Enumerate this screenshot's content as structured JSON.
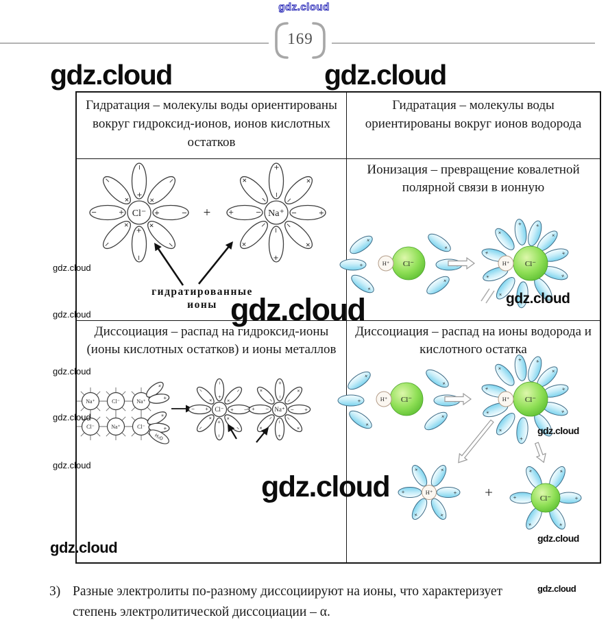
{
  "watermark": "gdz.cloud",
  "page": {
    "number": "169"
  },
  "table": {
    "row1": {
      "left": "Гидратация – молекулы воды ориентированы вокруг гидроксид-ионов, ионов кислотных остатков",
      "right": "Гидратация – молекулы воды ориентированы вокруг ионов водорода"
    },
    "row2": {
      "right_title": "Ионизация – превращение ковалетной полярной связи в ионную",
      "hydrated_ions_label": "гидратированные ионы"
    },
    "row3": {
      "left_title": "Диссоциация – распад на гидроксид-ионы (ионы кислотных остатков) и ионы металлов",
      "right_title": "Диссоциация – распад на ионы водорода и кислотного остатка"
    }
  },
  "diagram": {
    "ions": {
      "chloride": "Cl⁻",
      "sodium": "Na⁺",
      "hydrogen": "H⁺",
      "chlorine": "Cl⁻",
      "water": "H₂O"
    },
    "signs": {
      "plus": "+",
      "minus": "−"
    }
  },
  "footnote": {
    "number": "3)",
    "text": "Разные электролиты по-разному диссоциируют на ионы, что характеризует степень электролитической диссоциации – α."
  }
}
